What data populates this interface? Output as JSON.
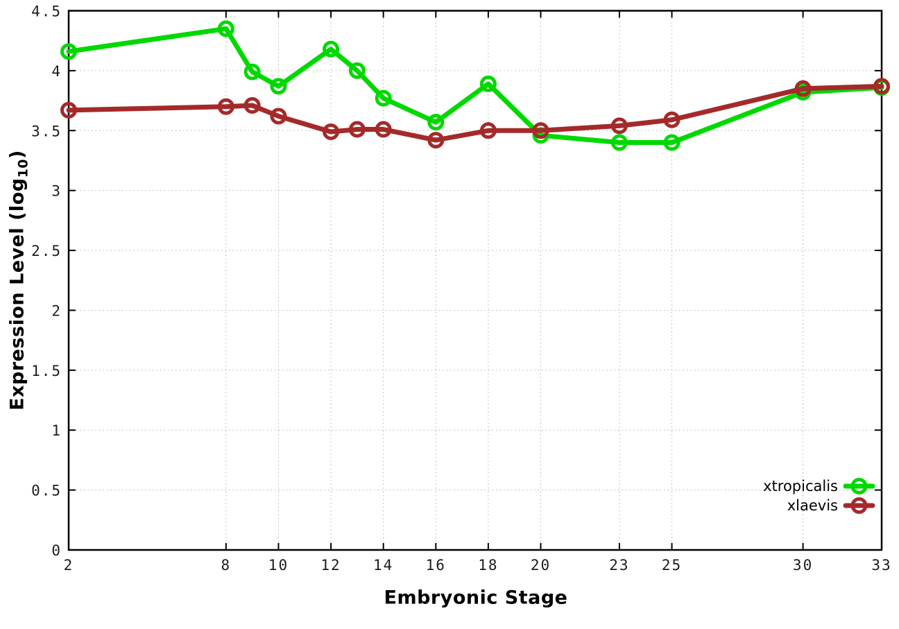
{
  "chart_data": {
    "type": "line",
    "title": "",
    "xlabel": "Embryonic Stage",
    "ylabel": "Expression Level (log10)",
    "ylabel_pre": "Expression Level (log",
    "ylabel_sub": "10",
    "ylabel_post": ")",
    "x": [
      2,
      8,
      9,
      10,
      12,
      13,
      14,
      16,
      18,
      20,
      23,
      25,
      30,
      33
    ],
    "xticks": [
      2,
      8,
      10,
      12,
      14,
      16,
      18,
      20,
      23,
      25,
      30,
      33
    ],
    "xtick_labels": [
      "2",
      "8",
      "10",
      "12",
      "14",
      "16",
      "18",
      "20",
      "23",
      "25",
      "30",
      "33"
    ],
    "yticks": [
      0,
      0.5,
      1,
      1.5,
      2,
      2.5,
      3,
      3.5,
      4,
      4.5
    ],
    "ytick_labels": [
      "0",
      "0.5",
      "1",
      "1.5",
      "2",
      "2.5",
      "3",
      "3.5",
      "4",
      "4.5"
    ],
    "xlim": [
      2,
      33
    ],
    "ylim": [
      0,
      4.5
    ],
    "grid": true,
    "grid_color": "#b0b0b0",
    "frame_color": "#000000",
    "legend_position": "bottom-right",
    "marker_style": "open-circle",
    "series": [
      {
        "name": "xtropicalis",
        "color": "#00d800",
        "values": [
          4.16,
          4.35,
          3.99,
          3.87,
          4.18,
          4.0,
          3.77,
          3.57,
          3.89,
          3.46,
          3.4,
          3.4,
          3.82,
          3.86
        ]
      },
      {
        "name": "xlaevis",
        "color": "#a42a2a",
        "values": [
          3.67,
          3.7,
          3.71,
          3.62,
          3.49,
          3.51,
          3.51,
          3.42,
          3.5,
          3.5,
          3.54,
          3.59,
          3.85,
          3.87
        ]
      }
    ]
  }
}
